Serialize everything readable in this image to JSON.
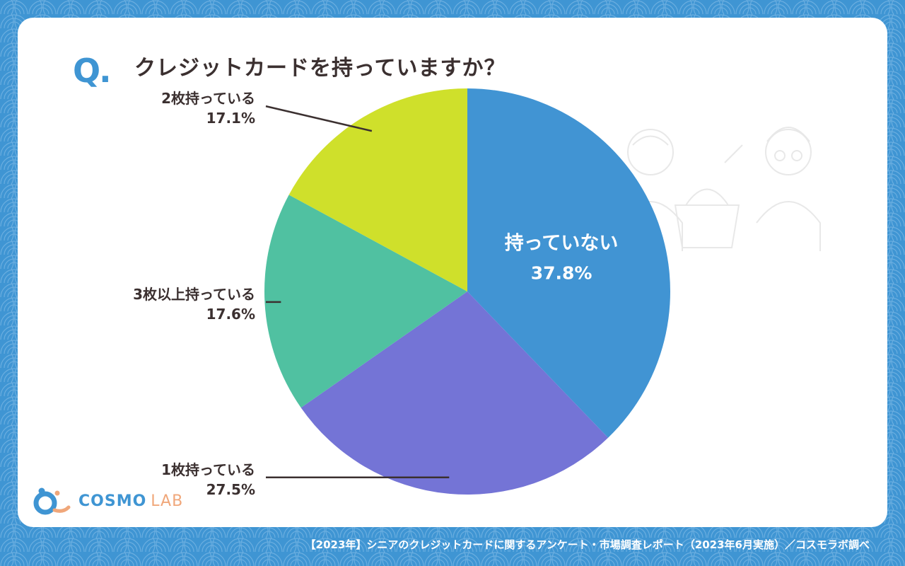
{
  "question": {
    "mark": "Q.",
    "text": "クレジットカードを持っていますか？"
  },
  "chart_data": {
    "type": "pie",
    "title": "クレジットカードを持っていますか？",
    "slices": [
      {
        "label": "持っていない",
        "value": 37.8,
        "value_text": "37.8%",
        "color": "#4194d3"
      },
      {
        "label": "1枚持っている",
        "value": 27.5,
        "value_text": "27.5%",
        "color": "#7474d6"
      },
      {
        "label": "3枚以上持っている",
        "value": 17.6,
        "value_text": "17.6%",
        "color": "#50c1a1"
      },
      {
        "label": "2枚持っている",
        "value": 17.1,
        "value_text": "17.1%",
        "color": "#cfe02b"
      }
    ],
    "start": "12 o'clock",
    "direction": "clockwise",
    "grid": false,
    "legend": "none"
  },
  "logo": {
    "name": "COSMO",
    "suffix": "LAB",
    "colors": {
      "primary": "#3f95d3",
      "accent": "#f0a77a"
    }
  },
  "footer": "【2023年】シニアのクレジットカードに関するアンケート・市場調査レポート（2023年6月実施）／コスモラボ調べ",
  "colors": {
    "background": "#3f95d3",
    "card": "#ffffff",
    "text": "#3b3030"
  }
}
